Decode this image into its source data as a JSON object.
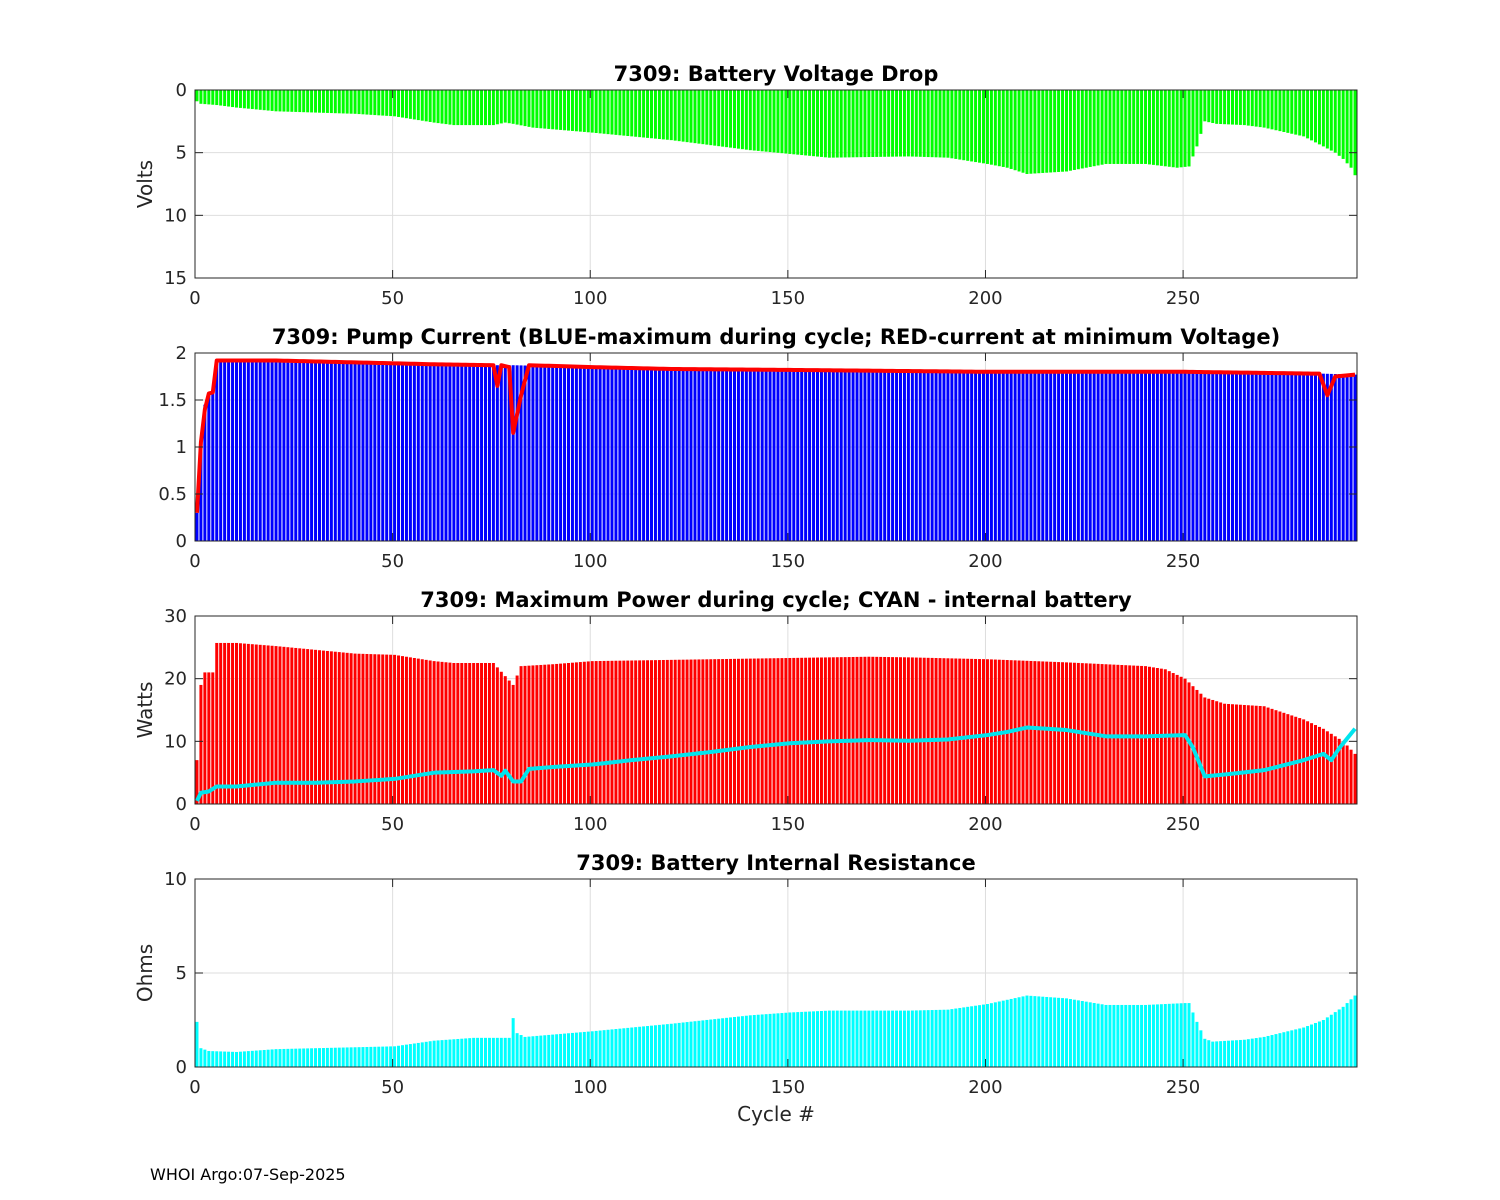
{
  "footer": "WHOI Argo:07-Sep-2025",
  "chart_data": [
    {
      "type": "bar",
      "title": "7309: Battery Voltage Drop",
      "ylabel": "Volts",
      "xlabel": "",
      "xlim": [
        0,
        294
      ],
      "ylim": [
        0,
        15
      ],
      "y_reversed": true,
      "xticks": [
        0,
        50,
        100,
        150,
        200,
        250
      ],
      "yticks": [
        0,
        5,
        10,
        15
      ],
      "grid": true,
      "bar_color": "#00ff00",
      "series": [
        {
          "name": "voltage drop",
          "kind": "bar",
          "points": [
            [
              0,
              0.9
            ],
            [
              1,
              1.1
            ],
            [
              5,
              1.2
            ],
            [
              10,
              1.4
            ],
            [
              20,
              1.7
            ],
            [
              30,
              1.8
            ],
            [
              40,
              1.9
            ],
            [
              50,
              2.1
            ],
            [
              60,
              2.6
            ],
            [
              65,
              2.8
            ],
            [
              75,
              2.8
            ],
            [
              78,
              2.6
            ],
            [
              80,
              2.7
            ],
            [
              85,
              3.0
            ],
            [
              100,
              3.4
            ],
            [
              120,
              4.0
            ],
            [
              140,
              4.8
            ],
            [
              150,
              5.1
            ],
            [
              160,
              5.4
            ],
            [
              180,
              5.3
            ],
            [
              190,
              5.4
            ],
            [
              200,
              5.9
            ],
            [
              205,
              6.2
            ],
            [
              210,
              6.7
            ],
            [
              220,
              6.5
            ],
            [
              230,
              5.9
            ],
            [
              240,
              5.9
            ],
            [
              248,
              6.2
            ],
            [
              251,
              6.1
            ],
            [
              253,
              4.5
            ],
            [
              255,
              2.5
            ],
            [
              258,
              2.7
            ],
            [
              265,
              2.8
            ],
            [
              270,
              3.0
            ],
            [
              280,
              3.7
            ],
            [
              285,
              4.5
            ],
            [
              288,
              5.0
            ],
            [
              290,
              5.5
            ],
            [
              292,
              6.2
            ],
            [
              293,
              6.8
            ]
          ]
        }
      ]
    },
    {
      "type": "bar",
      "title": "7309: Pump Current (BLUE-maximum during cycle; RED-current at minimum Voltage)",
      "ylabel": "",
      "xlabel": "",
      "xlim": [
        0,
        294
      ],
      "ylim": [
        0,
        2
      ],
      "y_reversed": false,
      "xticks": [
        0,
        50,
        100,
        150,
        200,
        250
      ],
      "yticks": [
        0,
        0.5,
        1,
        1.5,
        2
      ],
      "grid": true,
      "bar_color": "#0000ff",
      "line_color": "#ff0000",
      "series": [
        {
          "name": "BLUE-maximum during cycle",
          "kind": "bar",
          "points": [
            [
              0,
              0.3
            ],
            [
              1,
              1.0
            ],
            [
              2,
              1.45
            ],
            [
              3,
              1.55
            ],
            [
              4,
              1.6
            ],
            [
              5,
              1.9
            ],
            [
              10,
              1.9
            ],
            [
              20,
              1.9
            ],
            [
              40,
              1.89
            ],
            [
              50,
              1.88
            ],
            [
              60,
              1.87
            ],
            [
              75,
              1.87
            ],
            [
              80,
              1.87
            ],
            [
              100,
              1.85
            ],
            [
              120,
              1.83
            ],
            [
              150,
              1.82
            ],
            [
              200,
              1.8
            ],
            [
              250,
              1.8
            ],
            [
              285,
              1.78
            ],
            [
              293,
              1.77
            ]
          ]
        },
        {
          "name": "RED-current at minimum Voltage",
          "kind": "line",
          "points": [
            [
              0,
              0.3
            ],
            [
              1,
              1.05
            ],
            [
              2,
              1.4
            ],
            [
              3,
              1.57
            ],
            [
              4,
              1.58
            ],
            [
              5,
              1.92
            ],
            [
              20,
              1.92
            ],
            [
              40,
              1.9
            ],
            [
              60,
              1.88
            ],
            [
              75,
              1.87
            ],
            [
              76,
              1.65
            ],
            [
              77,
              1.87
            ],
            [
              79,
              1.85
            ],
            [
              80,
              1.15
            ],
            [
              82,
              1.55
            ],
            [
              84,
              1.87
            ],
            [
              100,
              1.85
            ],
            [
              120,
              1.83
            ],
            [
              150,
              1.82
            ],
            [
              200,
              1.8
            ],
            [
              250,
              1.8
            ],
            [
              284,
              1.78
            ],
            [
              286,
              1.55
            ],
            [
              288,
              1.75
            ],
            [
              293,
              1.77
            ]
          ]
        }
      ]
    },
    {
      "type": "bar",
      "title": "7309: Maximum Power during cycle; CYAN - internal battery",
      "ylabel": "Watts",
      "xlabel": "",
      "xlim": [
        0,
        294
      ],
      "ylim": [
        0,
        30
      ],
      "y_reversed": false,
      "xticks": [
        0,
        50,
        100,
        150,
        200,
        250
      ],
      "yticks": [
        0,
        10,
        20,
        30
      ],
      "grid": true,
      "bar_color": "#ff0000",
      "line_color": "#00e5ee",
      "series": [
        {
          "name": "maximum power",
          "kind": "bar",
          "points": [
            [
              0,
              7
            ],
            [
              1,
              19
            ],
            [
              2,
              21
            ],
            [
              4,
              21
            ],
            [
              5,
              25.7
            ],
            [
              10,
              25.7
            ],
            [
              20,
              25.2
            ],
            [
              30,
              24.6
            ],
            [
              40,
              24
            ],
            [
              50,
              23.8
            ],
            [
              60,
              22.8
            ],
            [
              65,
              22.5
            ],
            [
              75,
              22.5
            ],
            [
              80,
              19
            ],
            [
              82,
              22
            ],
            [
              90,
              22.3
            ],
            [
              100,
              22.8
            ],
            [
              120,
              23
            ],
            [
              150,
              23.3
            ],
            [
              170,
              23.5
            ],
            [
              180,
              23.4
            ],
            [
              200,
              23.1
            ],
            [
              220,
              22.6
            ],
            [
              240,
              22
            ],
            [
              245,
              21.5
            ],
            [
              250,
              20
            ],
            [
              255,
              17
            ],
            [
              260,
              16
            ],
            [
              270,
              15.6
            ],
            [
              280,
              13.5
            ],
            [
              285,
              12
            ],
            [
              290,
              10
            ],
            [
              293,
              8
            ]
          ]
        },
        {
          "name": "CYAN - internal battery",
          "kind": "line",
          "points": [
            [
              0,
              0.5
            ],
            [
              1,
              1.8
            ],
            [
              3,
              2
            ],
            [
              5,
              2.8
            ],
            [
              10,
              2.8
            ],
            [
              20,
              3.4
            ],
            [
              30,
              3.4
            ],
            [
              40,
              3.6
            ],
            [
              50,
              4
            ],
            [
              60,
              5
            ],
            [
              70,
              5.2
            ],
            [
              75,
              5.4
            ],
            [
              77,
              4.5
            ],
            [
              78,
              5.3
            ],
            [
              80,
              3.6
            ],
            [
              82,
              3.6
            ],
            [
              84,
              5.6
            ],
            [
              90,
              5.9
            ],
            [
              100,
              6.3
            ],
            [
              110,
              7
            ],
            [
              120,
              7.6
            ],
            [
              130,
              8.3
            ],
            [
              140,
              9.1
            ],
            [
              150,
              9.7
            ],
            [
              160,
              10
            ],
            [
              170,
              10.2
            ],
            [
              180,
              10.1
            ],
            [
              190,
              10.3
            ],
            [
              200,
              11
            ],
            [
              205,
              11.5
            ],
            [
              210,
              12.2
            ],
            [
              220,
              11.8
            ],
            [
              230,
              10.8
            ],
            [
              240,
              10.8
            ],
            [
              250,
              11
            ],
            [
              252,
              9
            ],
            [
              255,
              4.4
            ],
            [
              260,
              4.7
            ],
            [
              270,
              5.4
            ],
            [
              280,
              7
            ],
            [
              285,
              8
            ],
            [
              287,
              7
            ],
            [
              289,
              8.9
            ],
            [
              293,
              12
            ]
          ]
        }
      ]
    },
    {
      "type": "bar",
      "title": "7309: Battery Internal Resistance",
      "ylabel": "Ohms",
      "xlabel": "Cycle #",
      "xlim": [
        0,
        294
      ],
      "ylim": [
        0,
        10
      ],
      "y_reversed": false,
      "xticks": [
        0,
        50,
        100,
        150,
        200,
        250
      ],
      "yticks": [
        0,
        5,
        10
      ],
      "grid": true,
      "bar_color": "#00ffff",
      "series": [
        {
          "name": "internal resistance",
          "kind": "bar",
          "points": [
            [
              0,
              2.4
            ],
            [
              1,
              1
            ],
            [
              3,
              0.85
            ],
            [
              10,
              0.8
            ],
            [
              20,
              0.95
            ],
            [
              40,
              1.05
            ],
            [
              50,
              1.1
            ],
            [
              60,
              1.4
            ],
            [
              70,
              1.55
            ],
            [
              79,
              1.55
            ],
            [
              80,
              2.6
            ],
            [
              81,
              1.8
            ],
            [
              83,
              1.6
            ],
            [
              100,
              1.9
            ],
            [
              120,
              2.3
            ],
            [
              140,
              2.75
            ],
            [
              150,
              2.9
            ],
            [
              160,
              3
            ],
            [
              180,
              3
            ],
            [
              190,
              3.05
            ],
            [
              200,
              3.35
            ],
            [
              210,
              3.8
            ],
            [
              220,
              3.65
            ],
            [
              230,
              3.3
            ],
            [
              240,
              3.3
            ],
            [
              250,
              3.4
            ],
            [
              251,
              3.4
            ],
            [
              253,
              2.4
            ],
            [
              255,
              1.5
            ],
            [
              257,
              1.35
            ],
            [
              265,
              1.45
            ],
            [
              270,
              1.6
            ],
            [
              280,
              2.1
            ],
            [
              285,
              2.5
            ],
            [
              290,
              3.2
            ],
            [
              293,
              3.8
            ]
          ]
        }
      ]
    }
  ]
}
